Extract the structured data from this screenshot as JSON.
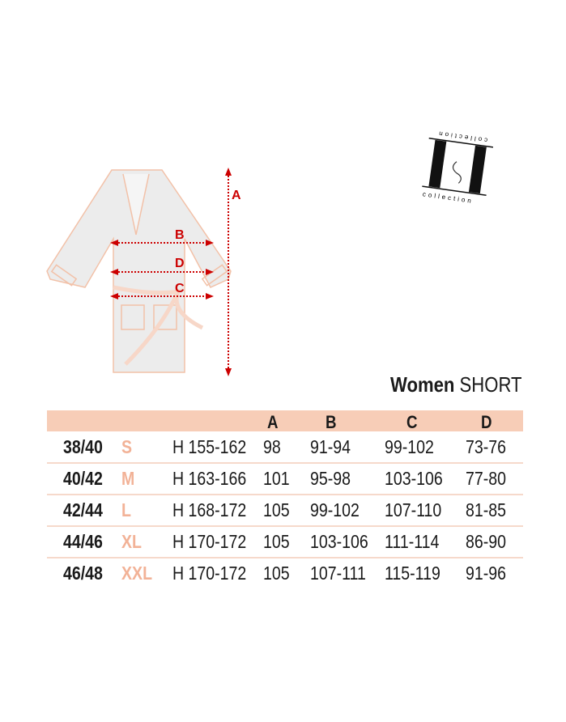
{
  "title": {
    "bold": "Women",
    "light": "SHORT"
  },
  "logo": {
    "text": "collection",
    "monogram": "LL"
  },
  "diagram": {
    "labels": {
      "a": "A",
      "b": "B",
      "c": "C",
      "d": "D"
    },
    "arrow_color": "#cc0000",
    "robe_color": "#e8e8e8",
    "trim_color": "#f2c1a8"
  },
  "table": {
    "header_color": "#f7cdb7",
    "size_color": "#f2b297",
    "columns": [
      "A",
      "B",
      "C",
      "D"
    ],
    "rows": [
      {
        "eu": "38/40",
        "size": "S",
        "height": "H 155-162",
        "a": "98",
        "b": "91-94",
        "c": "99-102",
        "d": "73-76"
      },
      {
        "eu": "40/42",
        "size": "M",
        "height": "H 163-166",
        "a": "101",
        "b": "95-98",
        "c": "103-106",
        "d": "77-80"
      },
      {
        "eu": "42/44",
        "size": "L",
        "height": "H 168-172",
        "a": "105",
        "b": "99-102",
        "c": "107-110",
        "d": "81-85"
      },
      {
        "eu": "44/46",
        "size": "XL",
        "height": "H 170-172",
        "a": "105",
        "b": "103-106",
        "c": "111-114",
        "d": "86-90"
      },
      {
        "eu": "46/48",
        "size": "XXL",
        "height": "H 170-172",
        "a": "105",
        "b": "107-111",
        "c": "115-119",
        "d": "91-96"
      }
    ]
  }
}
